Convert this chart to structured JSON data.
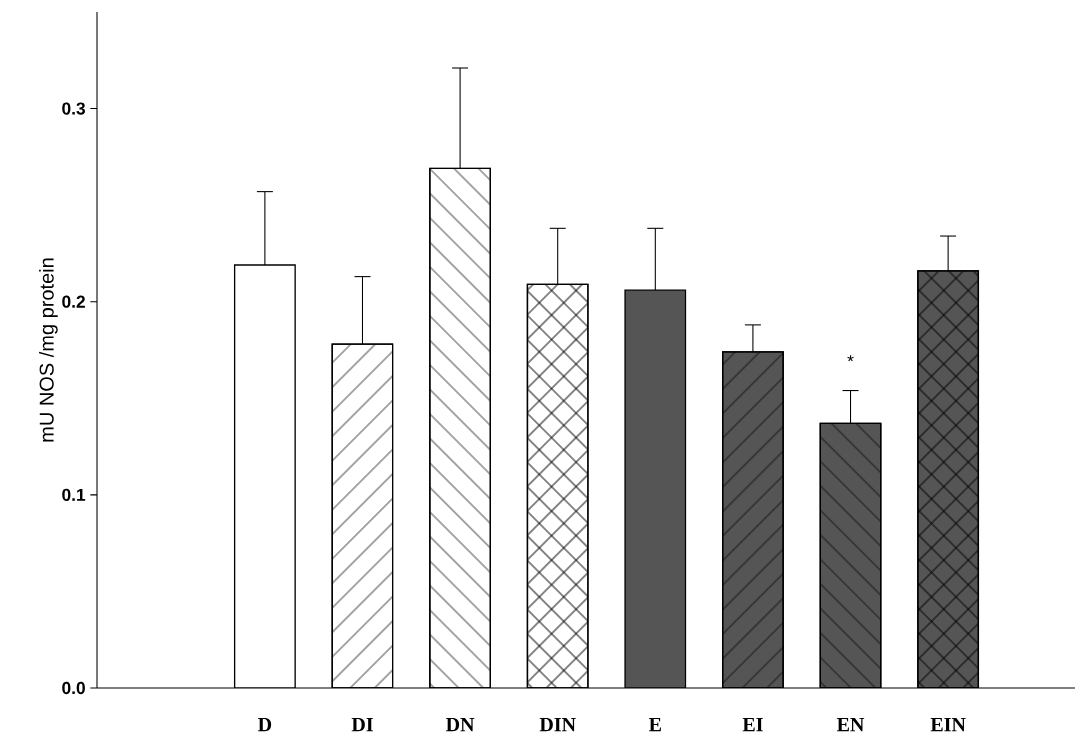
{
  "chart_data": {
    "type": "bar",
    "ylabel": "mU NOS /mg protein",
    "categories": [
      "D",
      "DI",
      "DN",
      "DIN",
      "E",
      "EI",
      "EN",
      "EIN"
    ],
    "values": [
      0.219,
      0.178,
      0.269,
      0.209,
      0.206,
      0.174,
      0.137,
      0.216
    ],
    "errors": [
      0.038,
      0.035,
      0.052,
      0.029,
      0.032,
      0.014,
      0.017,
      0.018
    ],
    "colors": [
      "#ffffff",
      "#ffffff",
      "#ffffff",
      "#ffffff",
      "#555555",
      "#555555",
      "#555555",
      "#555555"
    ],
    "ylim": [
      0,
      0.35
    ],
    "yticks": [
      {
        "value": 0,
        "label": "0.0"
      },
      0.1,
      0.2,
      0.3
    ],
    "annotations": [
      {
        "text": "*",
        "x": "EN",
        "y": 0.154
      }
    ]
  }
}
